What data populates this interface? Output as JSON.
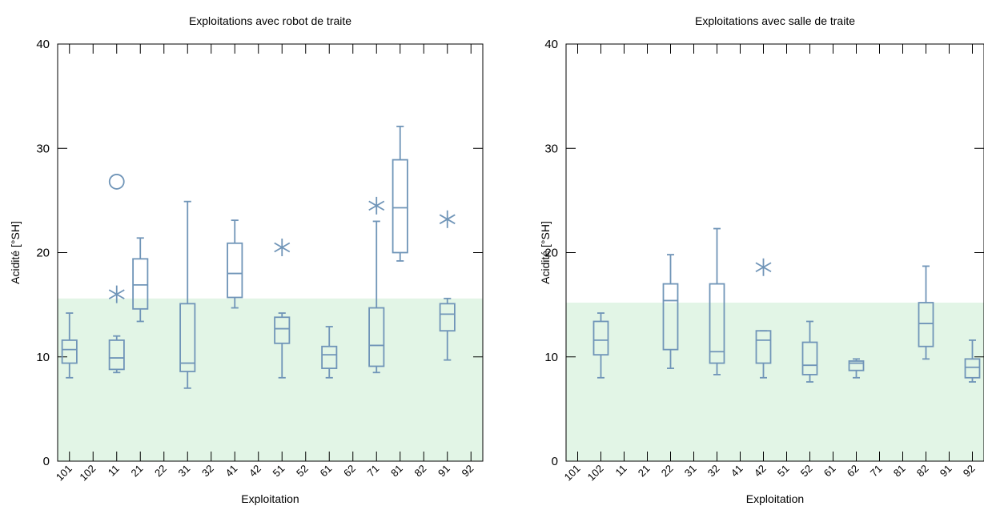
{
  "chart_data": [
    {
      "type": "boxplot",
      "title": "Exploitations avec robot de traite",
      "xlabel": "Exploitation",
      "ylabel": "Acidité [°SH]",
      "ylim": [
        0,
        40
      ],
      "yticks": [
        0,
        10,
        20,
        30,
        40
      ],
      "reference_band": {
        "from": 0,
        "to": 15.6,
        "color": "#e2f5e6"
      },
      "box_color": "#7095b8",
      "categories": [
        "101",
        "102",
        "11",
        "21",
        "22",
        "31",
        "32",
        "41",
        "42",
        "51",
        "52",
        "61",
        "62",
        "71",
        "81",
        "82",
        "91",
        "92"
      ],
      "boxes": [
        {
          "category": "101",
          "whisker_low": 8.0,
          "q1": 9.4,
          "median": 10.7,
          "q3": 11.6,
          "whisker_high": 14.2
        },
        {
          "category": "11",
          "whisker_low": 8.5,
          "q1": 8.8,
          "median": 9.9,
          "q3": 11.6,
          "whisker_high": 12.0
        },
        {
          "category": "21",
          "whisker_low": 13.4,
          "q1": 14.6,
          "median": 16.9,
          "q3": 19.4,
          "whisker_high": 21.4
        },
        {
          "category": "31",
          "whisker_low": 7.0,
          "q1": 8.6,
          "median": 9.4,
          "q3": 15.1,
          "whisker_high": 24.9
        },
        {
          "category": "41",
          "whisker_low": 14.7,
          "q1": 15.7,
          "median": 18.0,
          "q3": 20.9,
          "whisker_high": 23.1
        },
        {
          "category": "51",
          "whisker_low": 8.0,
          "q1": 11.3,
          "median": 12.7,
          "q3": 13.8,
          "whisker_high": 14.2
        },
        {
          "category": "61",
          "whisker_low": 8.0,
          "q1": 8.9,
          "median": 10.2,
          "q3": 11.0,
          "whisker_high": 12.9
        },
        {
          "category": "71",
          "whisker_low": 8.5,
          "q1": 9.1,
          "median": 11.1,
          "q3": 14.7,
          "whisker_high": 23.0
        },
        {
          "category": "81",
          "whisker_low": 19.2,
          "q1": 20.0,
          "median": 24.3,
          "q3": 28.9,
          "whisker_high": 32.1
        },
        {
          "category": "91",
          "whisker_low": 9.7,
          "q1": 12.5,
          "median": 14.1,
          "q3": 15.1,
          "whisker_high": 15.6
        }
      ],
      "outliers": [
        {
          "category": "11",
          "value": 26.8,
          "marker": "circle"
        },
        {
          "category": "11",
          "value": 16.0,
          "marker": "star"
        },
        {
          "category": "51",
          "value": 20.5,
          "marker": "star"
        },
        {
          "category": "71",
          "value": 24.5,
          "marker": "star"
        },
        {
          "category": "91",
          "value": 23.2,
          "marker": "star"
        }
      ]
    },
    {
      "type": "boxplot",
      "title": "Exploitations avec salle de traite",
      "xlabel": "Exploitation",
      "ylabel": "Acidité [°SH]",
      "ylim": [
        0,
        40
      ],
      "yticks": [
        0,
        10,
        20,
        30,
        40
      ],
      "reference_band": {
        "from": 0,
        "to": 15.2,
        "color": "#e2f5e6"
      },
      "box_color": "#7095b8",
      "categories": [
        "101",
        "102",
        "11",
        "21",
        "22",
        "31",
        "32",
        "41",
        "42",
        "51",
        "52",
        "61",
        "62",
        "71",
        "81",
        "82",
        "91",
        "92"
      ],
      "boxes": [
        {
          "category": "102",
          "whisker_low": 8.0,
          "q1": 10.2,
          "median": 11.6,
          "q3": 13.4,
          "whisker_high": 14.2
        },
        {
          "category": "22",
          "whisker_low": 8.9,
          "q1": 10.7,
          "median": 15.4,
          "q3": 17.0,
          "whisker_high": 19.8
        },
        {
          "category": "32",
          "whisker_low": 8.3,
          "q1": 9.4,
          "median": 10.5,
          "q3": 17.0,
          "whisker_high": 22.3
        },
        {
          "category": "42",
          "whisker_low": 8.0,
          "q1": 9.4,
          "median": 11.6,
          "q3": 12.5,
          "whisker_high": 12.5
        },
        {
          "category": "52",
          "whisker_low": 7.6,
          "q1": 8.3,
          "median": 9.2,
          "q3": 11.4,
          "whisker_high": 13.4
        },
        {
          "category": "62",
          "whisker_low": 8.0,
          "q1": 8.7,
          "median": 9.4,
          "q3": 9.6,
          "whisker_high": 9.8
        },
        {
          "category": "82",
          "whisker_low": 9.8,
          "q1": 11.0,
          "median": 13.2,
          "q3": 15.2,
          "whisker_high": 18.7
        },
        {
          "category": "92",
          "whisker_low": 7.6,
          "q1": 8.0,
          "median": 9.0,
          "q3": 9.8,
          "whisker_high": 11.6
        }
      ],
      "outliers": [
        {
          "category": "42",
          "value": 18.6,
          "marker": "star"
        }
      ]
    }
  ]
}
